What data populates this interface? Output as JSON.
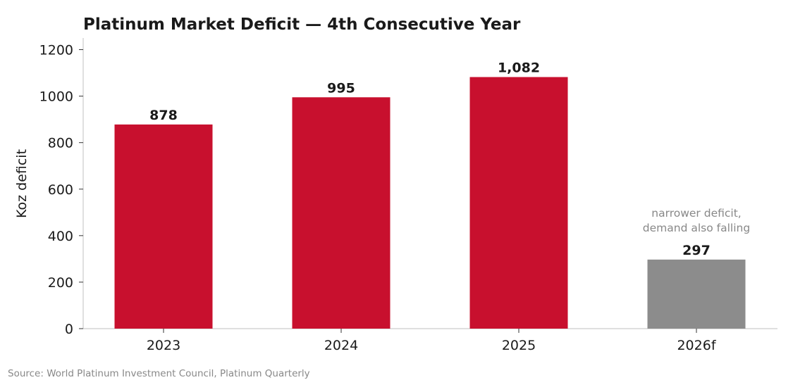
{
  "chart_data": {
    "type": "bar",
    "title": "Platinum Market Deficit — 4th Consecutive Year",
    "xlabel": "",
    "ylabel": "Koz deficit",
    "categories": [
      "2023",
      "2024",
      "2025",
      "2026f"
    ],
    "values": [
      878,
      995,
      1082,
      297
    ],
    "value_labels": [
      "878",
      "995",
      "1,082",
      "297"
    ],
    "bar_colors": [
      "#c8102e",
      "#c8102e",
      "#c8102e",
      "#8c8c8c"
    ],
    "ylim": [
      0,
      1250
    ],
    "yticks": [
      0,
      200,
      400,
      600,
      800,
      1000,
      1200
    ],
    "grid": false,
    "annotation": {
      "category": "2026f",
      "lines": [
        "narrower deficit,",
        "demand also falling"
      ]
    },
    "source": "Source: World Platinum Investment Council, Platinum Quarterly"
  }
}
